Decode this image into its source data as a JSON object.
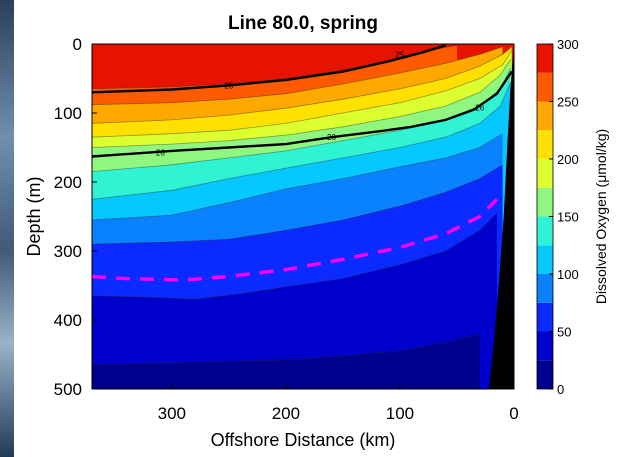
{
  "chart_data": {
    "type": "heatmap",
    "title": "Line 80.0, spring",
    "xlabel": "Offshore Distance (km)",
    "ylabel": "Depth (m)",
    "xlim": [
      370,
      0
    ],
    "ylim": [
      0,
      500
    ],
    "x_ticks": [
      "300",
      "200",
      "100",
      "0"
    ],
    "y_ticks": [
      "0",
      "100",
      "200",
      "300",
      "400",
      "500"
    ],
    "colorbar": {
      "label": "Dissolved Oxygen (μmol/kg)",
      "ticks": [
        "0",
        "50",
        "100",
        "150",
        "200",
        "250",
        "300"
      ],
      "range": [
        0,
        300
      ],
      "levels": [
        {
          "range": [
            0,
            25
          ],
          "color": "#00008f"
        },
        {
          "range": [
            25,
            50
          ],
          "color": "#0000cd"
        },
        {
          "range": [
            50,
            75
          ],
          "color": "#0a2aff"
        },
        {
          "range": [
            75,
            100
          ],
          "color": "#0a82ff"
        },
        {
          "range": [
            100,
            125
          ],
          "color": "#05c8ff"
        },
        {
          "range": [
            125,
            150
          ],
          "color": "#30f3d4"
        },
        {
          "range": [
            150,
            175
          ],
          "color": "#8ff77f"
        },
        {
          "range": [
            175,
            200
          ],
          "color": "#dcff30"
        },
        {
          "range": [
            200,
            225
          ],
          "color": "#ffe000"
        },
        {
          "range": [
            225,
            250
          ],
          "color": "#ffa800"
        },
        {
          "range": [
            250,
            275
          ],
          "color": "#ff5a00"
        },
        {
          "range": [
            275,
            300
          ],
          "color": "#e81200"
        },
        {
          "range": [
            300,
            325
          ],
          "color": "#b80000"
        }
      ]
    },
    "isopycnals": [
      {
        "label": "25",
        "points": [
          [
            370,
            70
          ],
          [
            300,
            66
          ],
          [
            250,
            60
          ],
          [
            200,
            52
          ],
          [
            150,
            40
          ],
          [
            110,
            25
          ],
          [
            80,
            12
          ],
          [
            60,
            2
          ]
        ]
      },
      {
        "label": "26",
        "points": [
          [
            370,
            163
          ],
          [
            300,
            155
          ],
          [
            250,
            150
          ],
          [
            200,
            145
          ],
          [
            160,
            135
          ],
          [
            120,
            127
          ],
          [
            90,
            120
          ],
          [
            60,
            110
          ],
          [
            35,
            95
          ],
          [
            15,
            72
          ],
          [
            2,
            40
          ]
        ]
      }
    ],
    "oxygen_boundary_dashed": {
      "color": "#ff00ff",
      "points": [
        [
          370,
          337
        ],
        [
          340,
          340
        ],
        [
          290,
          342
        ],
        [
          250,
          337
        ],
        [
          200,
          327
        ],
        [
          150,
          312
        ],
        [
          100,
          295
        ],
        [
          60,
          275
        ],
        [
          30,
          250
        ],
        [
          15,
          225
        ]
      ]
    },
    "data_boundaries": [
      {
        "level": 25,
        "points": [
          [
            370,
            465
          ],
          [
            300,
            462
          ],
          [
            250,
            460
          ],
          [
            200,
            458
          ],
          [
            150,
            452
          ],
          [
            100,
            445
          ],
          [
            60,
            432
          ],
          [
            30,
            420
          ]
        ]
      },
      {
        "level": 50,
        "points": [
          [
            370,
            365
          ],
          [
            320,
            367
          ],
          [
            280,
            370
          ],
          [
            240,
            362
          ],
          [
            200,
            352
          ],
          [
            150,
            340
          ],
          [
            100,
            320
          ],
          [
            60,
            300
          ],
          [
            30,
            270
          ],
          [
            15,
            245
          ]
        ]
      },
      {
        "level": 75,
        "points": [
          [
            370,
            290
          ],
          [
            300,
            287
          ],
          [
            250,
            283
          ],
          [
            200,
            270
          ],
          [
            150,
            255
          ],
          [
            100,
            235
          ],
          [
            60,
            215
          ],
          [
            30,
            195
          ],
          [
            10,
            175
          ]
        ]
      },
      {
        "level": 100,
        "points": [
          [
            370,
            255
          ],
          [
            300,
            248
          ],
          [
            250,
            230
          ],
          [
            200,
            210
          ],
          [
            150,
            195
          ],
          [
            100,
            178
          ],
          [
            60,
            165
          ],
          [
            30,
            150
          ],
          [
            10,
            130
          ]
        ]
      },
      {
        "level": 125,
        "points": [
          [
            370,
            225
          ],
          [
            300,
            212
          ],
          [
            250,
            195
          ],
          [
            200,
            180
          ],
          [
            150,
            165
          ],
          [
            100,
            150
          ],
          [
            60,
            135
          ],
          [
            30,
            115
          ],
          [
            12,
            90
          ],
          [
            3,
            55
          ]
        ]
      },
      {
        "level": 150,
        "points": [
          [
            370,
            185
          ],
          [
            300,
            175
          ],
          [
            250,
            165
          ],
          [
            200,
            155
          ],
          [
            150,
            140
          ],
          [
            100,
            125
          ],
          [
            60,
            110
          ],
          [
            30,
            90
          ],
          [
            12,
            65
          ],
          [
            3,
            35
          ]
        ]
      },
      {
        "level": 175,
        "points": [
          [
            370,
            150
          ],
          [
            300,
            145
          ],
          [
            250,
            140
          ],
          [
            200,
            132
          ],
          [
            150,
            120
          ],
          [
            100,
            105
          ],
          [
            60,
            90
          ],
          [
            30,
            70
          ],
          [
            12,
            45
          ],
          [
            3,
            22
          ]
        ]
      },
      {
        "level": 200,
        "points": [
          [
            370,
            135
          ],
          [
            300,
            130
          ],
          [
            250,
            125
          ],
          [
            200,
            115
          ],
          [
            150,
            100
          ],
          [
            100,
            85
          ],
          [
            60,
            68
          ],
          [
            30,
            50
          ],
          [
            10,
            30
          ],
          [
            2,
            10
          ]
        ]
      },
      {
        "level": 225,
        "points": [
          [
            370,
            115
          ],
          [
            300,
            110
          ],
          [
            250,
            103
          ],
          [
            200,
            93
          ],
          [
            150,
            80
          ],
          [
            100,
            65
          ],
          [
            60,
            50
          ],
          [
            30,
            32
          ],
          [
            10,
            15
          ],
          [
            2,
            4
          ]
        ]
      },
      {
        "level": 250,
        "points": [
          [
            370,
            88
          ],
          [
            300,
            85
          ],
          [
            250,
            80
          ],
          [
            200,
            72
          ],
          [
            150,
            58
          ],
          [
            100,
            42
          ],
          [
            60,
            28
          ],
          [
            30,
            15
          ],
          [
            10,
            4
          ]
        ]
      },
      {
        "level": 275,
        "points": [
          [
            370,
            65
          ],
          [
            300,
            62
          ],
          [
            250,
            58
          ],
          [
            200,
            50
          ],
          [
            150,
            38
          ],
          [
            100,
            22
          ],
          [
            70,
            8
          ],
          [
            50,
            2
          ]
        ]
      }
    ],
    "seafloor": {
      "color": "#000000",
      "points": [
        [
          0,
          0
        ],
        [
          3,
          60
        ],
        [
          6,
          150
        ],
        [
          9,
          250
        ],
        [
          13,
          340
        ],
        [
          17,
          420
        ],
        [
          22,
          500
        ]
      ]
    },
    "grid": false
  }
}
